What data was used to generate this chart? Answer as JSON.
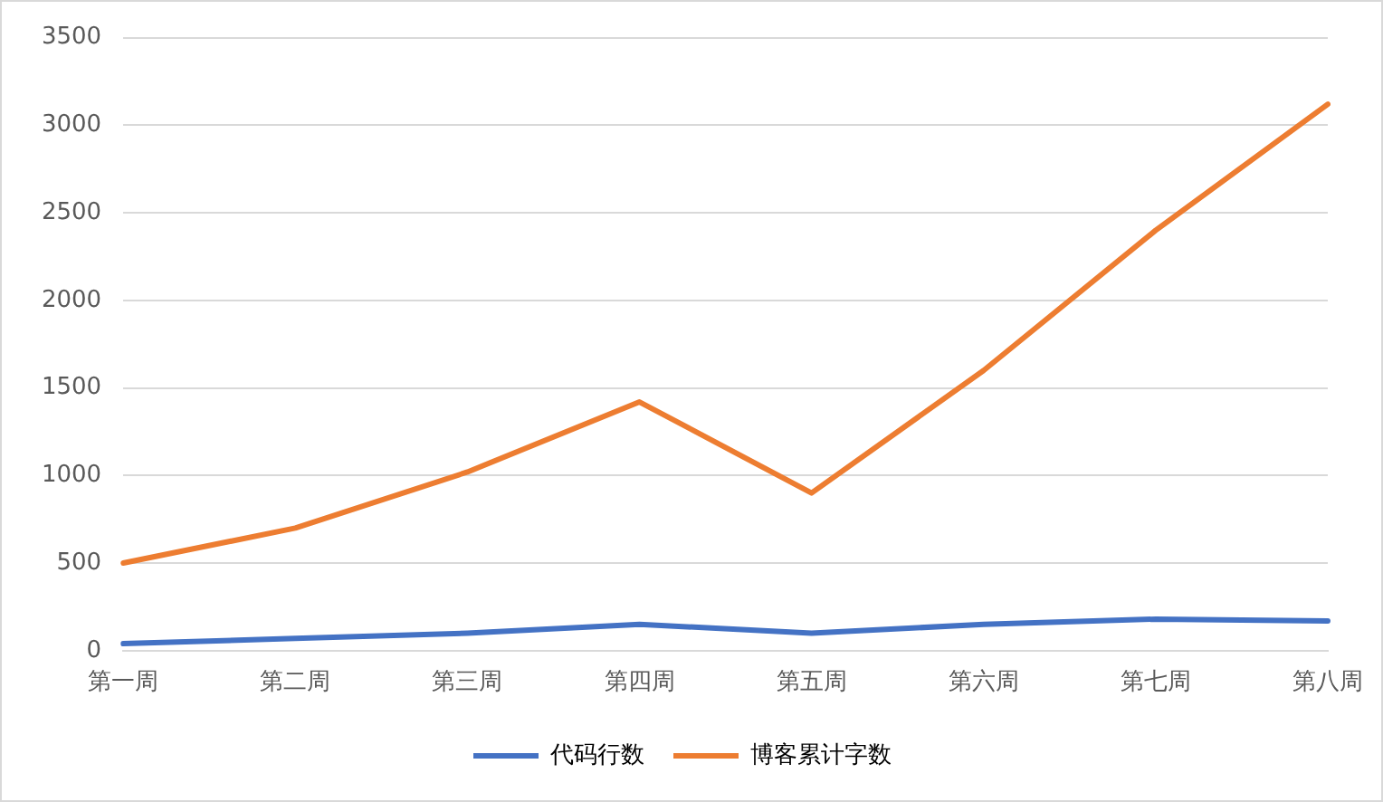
{
  "chart_data": {
    "type": "line",
    "categories": [
      "第一周",
      "第二周",
      "第三周",
      "第四周",
      "第五周",
      "第六周",
      "第七周",
      "第八周"
    ],
    "series": [
      {
        "name": "代码行数",
        "color": "#4472c4",
        "values": [
          40,
          70,
          100,
          150,
          100,
          150,
          180,
          170
        ]
      },
      {
        "name": "博客累计字数",
        "color": "#ed7d31",
        "values": [
          500,
          700,
          1020,
          1420,
          900,
          1600,
          2400,
          3120
        ]
      }
    ],
    "ylim": [
      0,
      3500
    ],
    "yticks": [
      0,
      500,
      1000,
      1500,
      2000,
      2500,
      3000,
      3500
    ],
    "grid": "y",
    "legend": "bottom",
    "marker": "none",
    "line_style": "solid"
  }
}
